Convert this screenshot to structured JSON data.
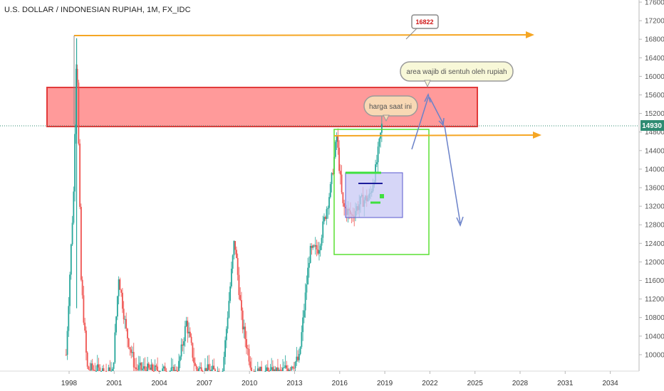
{
  "title": "U.S. DOLLAR / INDONESIAN RUPIAH, 1M, FX_IDC",
  "colors": {
    "up": "#26a69a",
    "down": "#ef5350",
    "arrow": "#f5a623",
    "zone": "#ff8a8a",
    "box": "#4cdf2f",
    "price": "#2e8b72"
  },
  "annotations": {
    "peak_value": "16822",
    "target_area": "area wajib di sentuh oleh rupiah",
    "current_label": "harga saat ini",
    "current_price": "14930"
  },
  "chart_data": {
    "type": "candlestick",
    "title": "U.S. DOLLAR / INDONESIAN RUPIAH, 1M, FX_IDC",
    "x_ticks": [
      "1998",
      "2001",
      "2004",
      "2007",
      "2010",
      "2013",
      "2016",
      "2019",
      "2022",
      "2025",
      "2028",
      "2031",
      "2034"
    ],
    "y_ticks": [
      10000,
      10400,
      10800,
      11200,
      11600,
      12000,
      12400,
      12800,
      13200,
      13600,
      14000,
      14400,
      14800,
      15200,
      15600,
      16000,
      16400,
      16800,
      17200,
      17600
    ],
    "ylim": [
      9600,
      17600
    ],
    "peak": {
      "x": 1998.5,
      "y": 16822
    },
    "current_price": 14930,
    "resistance_zone": [
      14930,
      15750
    ],
    "series": [
      {
        "x": 1997.8,
        "y": 10000
      },
      {
        "x": 1998.0,
        "y": 11400
      },
      {
        "x": 1998.3,
        "y": 13500
      },
      {
        "x": 1998.5,
        "y": 16822
      },
      {
        "x": 1998.8,
        "y": 11600
      },
      {
        "x": 1999.2,
        "y": 9700
      },
      {
        "x": 2000.9,
        "y": 9600
      },
      {
        "x": 2001.3,
        "y": 11700
      },
      {
        "x": 2001.8,
        "y": 10500
      },
      {
        "x": 2002.4,
        "y": 9700
      },
      {
        "x": 2005.2,
        "y": 9600
      },
      {
        "x": 2005.8,
        "y": 10700
      },
      {
        "x": 2006.4,
        "y": 9700
      },
      {
        "x": 2008.2,
        "y": 9600
      },
      {
        "x": 2009.0,
        "y": 12500
      },
      {
        "x": 2009.5,
        "y": 10700
      },
      {
        "x": 2010.2,
        "y": 9600
      },
      {
        "x": 2012.0,
        "y": 9600
      },
      {
        "x": 2013.3,
        "y": 9900
      },
      {
        "x": 2014.0,
        "y": 12200
      },
      {
        "x": 2014.6,
        "y": 12300
      },
      {
        "x": 2015.4,
        "y": 13600
      },
      {
        "x": 2015.8,
        "y": 14700
      },
      {
        "x": 2016.2,
        "y": 13200
      },
      {
        "x": 2016.8,
        "y": 13000
      },
      {
        "x": 2017.4,
        "y": 13300
      },
      {
        "x": 2018.0,
        "y": 13400
      },
      {
        "x": 2018.4,
        "y": 14000
      },
      {
        "x": 2018.8,
        "y": 14930
      }
    ]
  }
}
